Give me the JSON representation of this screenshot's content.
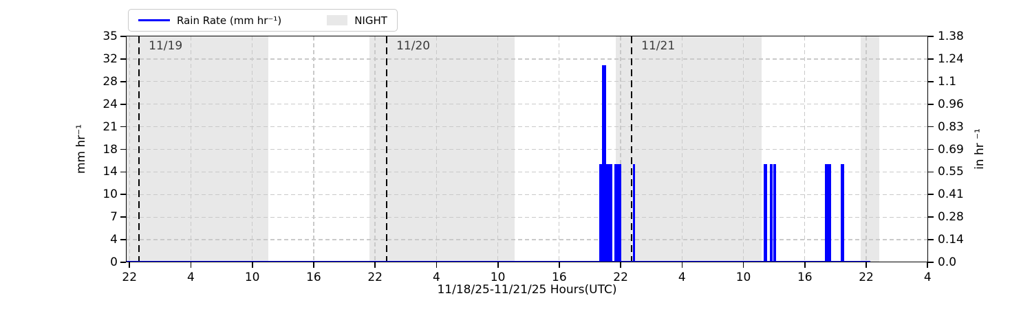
{
  "figure": {
    "xlabel": "11/18/25-11/21/25  Hours(UTC)",
    "ylabel_left": "mm hr⁻¹",
    "ylabel_right": "in hr ⁻¹"
  },
  "legend": {
    "rain_label": "Rain Rate (mm hr⁻¹)",
    "night_label": "NIGHT"
  },
  "colors": {
    "rain": "#0000ff",
    "night_shading": "#e8e8e8",
    "grid": "#c9c9c9",
    "day_line": "#000000",
    "day_label": "#3b3b3b"
  },
  "chart_data": {
    "type": "bar",
    "title": "",
    "xlabel": "11/18/25-11/21/25  Hours(UTC)",
    "x_axis": {
      "description": "hours since 11/18/25 22:00 UTC; axis range slightly padded",
      "hours_range": [
        -0.35,
        78.05
      ],
      "tick_hours": [
        0,
        6,
        12,
        18,
        24,
        30,
        36,
        42,
        48,
        54,
        60,
        66,
        72,
        78
      ],
      "tick_labels": [
        "22",
        "4",
        "10",
        "16",
        "22",
        "4",
        "10",
        "16",
        "22",
        "4",
        "10",
        "16",
        "22",
        "4"
      ]
    },
    "y_axis_left": {
      "label": "mm hr⁻¹",
      "lim": [
        0,
        35
      ],
      "tick_values": [
        0,
        3.5,
        7,
        10.5,
        14,
        17.5,
        21,
        24.5,
        28,
        31.5,
        35
      ],
      "tick_labels": [
        "0",
        "4",
        "7",
        "10",
        "14",
        "18",
        "21",
        "24",
        "28",
        "32",
        "35"
      ]
    },
    "y_axis_right": {
      "label": "in hr ⁻¹",
      "lim": [
        0,
        1.38
      ],
      "tick_labels": [
        "0.0",
        "0.14",
        "0.28",
        "0.41",
        "0.55",
        "0.69",
        "0.83",
        "0.96",
        "1.1",
        "1.24",
        "1.38"
      ]
    },
    "grid": true,
    "legend_position": "top-left-outside",
    "rain_bars": [
      {
        "t_start": 45.92,
        "t_end": 47.19,
        "mm_hr": 15.24
      },
      {
        "t_start": 46.18,
        "t_end": 46.59,
        "mm_hr": 30.48
      },
      {
        "t_start": 47.39,
        "t_end": 48.07,
        "mm_hr": 15.24
      },
      {
        "t_start": 49.21,
        "t_end": 49.41,
        "mm_hr": 15.24
      },
      {
        "t_start": 61.98,
        "t_end": 62.32,
        "mm_hr": 15.24
      },
      {
        "t_start": 62.59,
        "t_end": 62.86,
        "mm_hr": 15.24
      },
      {
        "t_start": 62.92,
        "t_end": 63.19,
        "mm_hr": 15.24
      },
      {
        "t_start": 67.97,
        "t_end": 68.57,
        "mm_hr": 15.24
      },
      {
        "t_start": 69.51,
        "t_end": 69.85,
        "mm_hr": 15.24
      }
    ],
    "night_spans": [
      {
        "t_start": -0.35,
        "t_end": 13.58
      },
      {
        "t_start": 23.46,
        "t_end": 37.65
      },
      {
        "t_start": 47.53,
        "t_end": 61.75
      },
      {
        "t_start": 71.46,
        "t_end": 73.28
      }
    ],
    "day_markers": [
      {
        "t": 0.94,
        "label": "11/19"
      },
      {
        "t": 25.14,
        "label": "11/20"
      },
      {
        "t": 49.08,
        "label": "11/21"
      }
    ],
    "zero_line": {
      "t_start": -0.35,
      "t_end": 72.4,
      "mm_hr": 0
    }
  }
}
